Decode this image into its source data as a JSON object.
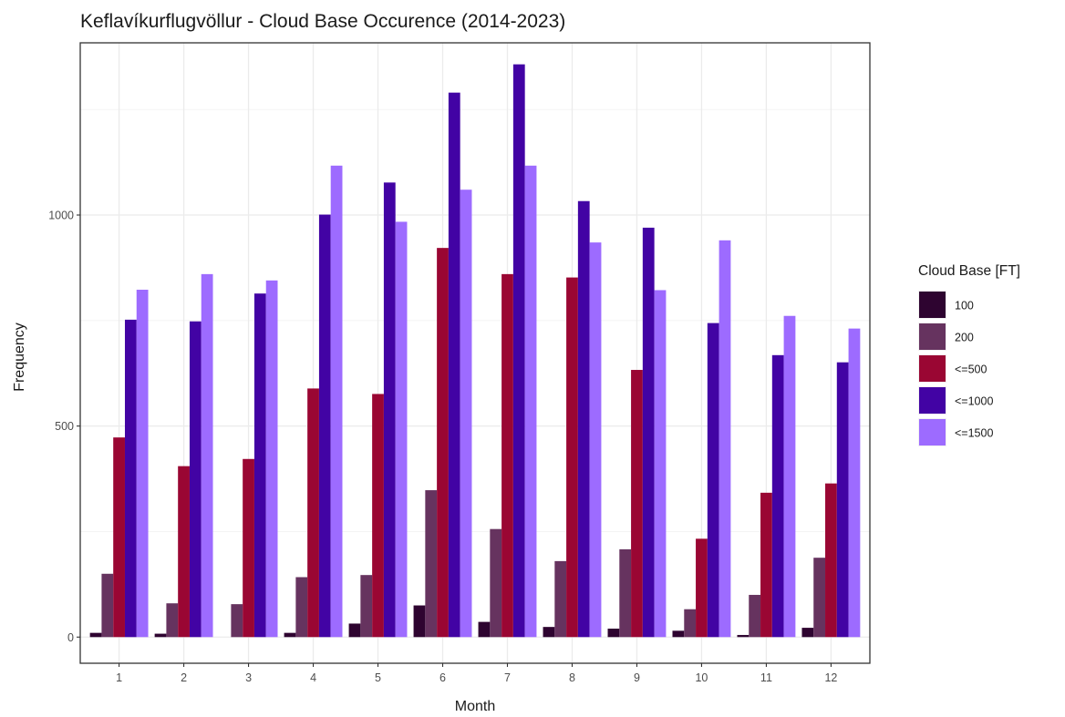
{
  "chart_data": {
    "type": "bar",
    "title": "Keflavíkurflugvöllur - Cloud Base Occurence (2014-2023)",
    "xlabel": "Month",
    "ylabel": "Frequency",
    "categories": [
      "1",
      "2",
      "3",
      "4",
      "5",
      "6",
      "7",
      "8",
      "9",
      "10",
      "11",
      "12"
    ],
    "yticks": [
      0,
      500,
      1000
    ],
    "ylim": [
      -62,
      1408
    ],
    "grid": true,
    "legend": {
      "title": "Cloud Base [FT]",
      "position": "right"
    },
    "series": [
      {
        "name": "100",
        "color": "#2e0430",
        "values": [
          10,
          8,
          0,
          10,
          32,
          75,
          36,
          24,
          20,
          15,
          5,
          22
        ]
      },
      {
        "name": "200",
        "color": "#66335f",
        "values": [
          150,
          80,
          78,
          142,
          147,
          348,
          256,
          180,
          208,
          66,
          100,
          188
        ]
      },
      {
        "name": "<=500",
        "color": "#9a0633",
        "values": [
          473,
          405,
          422,
          589,
          576,
          922,
          860,
          852,
          633,
          233,
          342,
          364
        ]
      },
      {
        "name": "<=1000",
        "color": "#4203a4",
        "values": [
          752,
          748,
          814,
          1001,
          1077,
          1290,
          1357,
          1033,
          970,
          744,
          668,
          651
        ]
      },
      {
        "name": "<=1500",
        "color": "#9d6bff",
        "values": [
          823,
          860,
          845,
          1117,
          984,
          1060,
          1117,
          935,
          822,
          940,
          761,
          731
        ]
      }
    ]
  }
}
